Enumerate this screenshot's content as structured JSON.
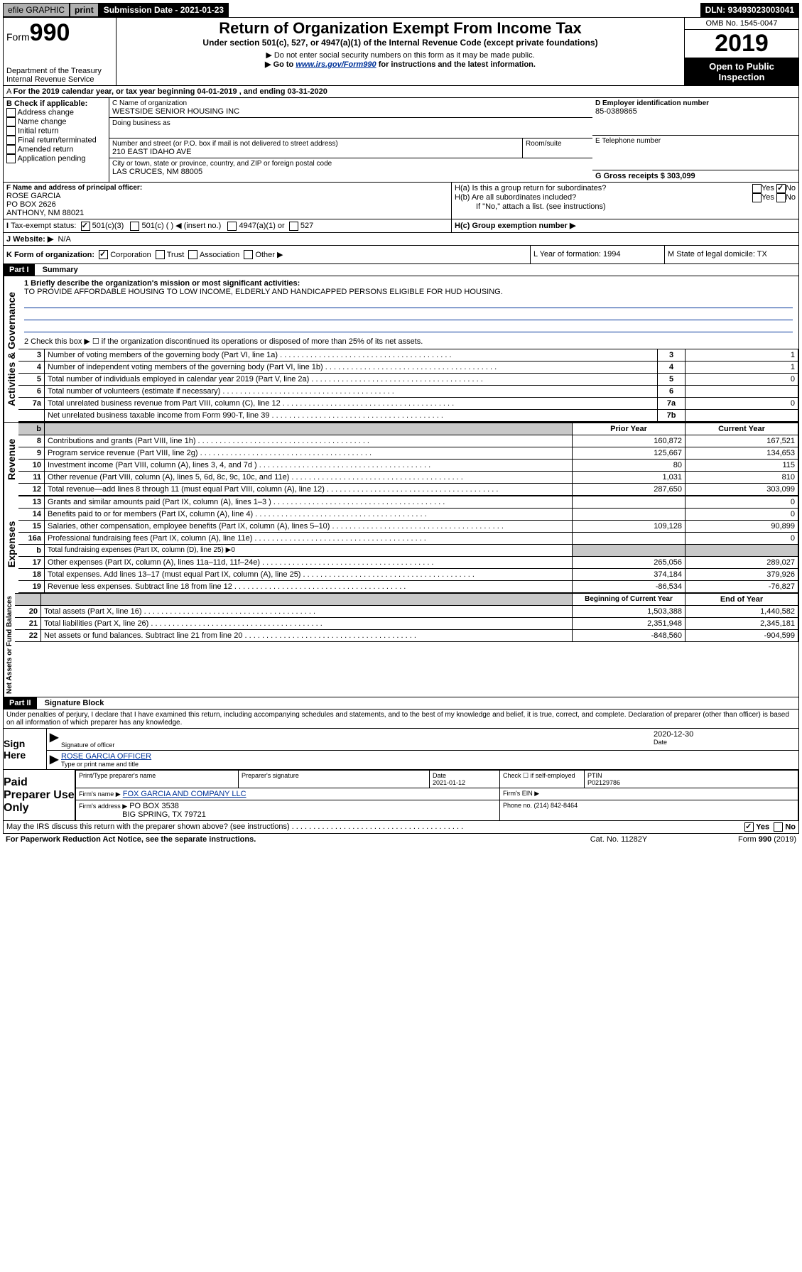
{
  "topbar": {
    "efile": "efile GRAPHIC",
    "print": "print",
    "subdate_label": "Submission Date - 2021-01-23",
    "dln": "DLN: 93493023003041"
  },
  "header": {
    "form_prefix": "Form",
    "form_num": "990",
    "dept": "Department of the Treasury\nInternal Revenue Service",
    "title": "Return of Organization Exempt From Income Tax",
    "subtitle": "Under section 501(c), 527, or 4947(a)(1) of the Internal Revenue Code (except private foundations)",
    "note1": "▶ Do not enter social security numbers on this form as it may be made public.",
    "note2_pre": "▶ Go to ",
    "note2_link": "www.irs.gov/Form990",
    "note2_post": " for instructions and the latest information.",
    "omb": "OMB No. 1545-0047",
    "year": "2019",
    "open": "Open to Public Inspection"
  },
  "line_a": "For the 2019 calendar year, or tax year beginning 04-01-2019   , and ending 03-31-2020",
  "box_b": {
    "title": "B Check if applicable:",
    "items": [
      "Address change",
      "Name change",
      "Initial return",
      "Final return/terminated",
      "Amended return",
      "Application pending"
    ]
  },
  "box_c": {
    "label": "C Name of organization",
    "org": "WESTSIDE SENIOR HOUSING INC",
    "dba": "Doing business as",
    "addr_label": "Number and street (or P.O. box if mail is not delivered to street address)",
    "addr": "210 EAST IDAHO AVE",
    "room": "Room/suite",
    "city_label": "City or town, state or province, country, and ZIP or foreign postal code",
    "city": "LAS CRUCES, NM  88005"
  },
  "box_d": {
    "label": "D Employer identification number",
    "val": "85-0389865"
  },
  "box_e": {
    "label": "E Telephone number"
  },
  "box_g": {
    "label": "G Gross receipts $ 303,099"
  },
  "box_f": {
    "label": "F  Name and address of principal officer:",
    "name": "ROSE GARCIA",
    "addr1": "PO BOX 2626",
    "addr2": "ANTHONY, NM  88021"
  },
  "box_h": {
    "a": "H(a)  Is this a group return for subordinates?",
    "b": "H(b)  Are all subordinates included?",
    "note": "If \"No,\" attach a list. (see instructions)",
    "c": "H(c)  Group exemption number ▶",
    "yes": "Yes",
    "no": "No"
  },
  "tax_exempt": {
    "label": "Tax-exempt status:",
    "c501c3": "501(c)(3)",
    "c501c": "501(c) (  ) ◀ (insert no.)",
    "c4947": "4947(a)(1) or",
    "c527": "527"
  },
  "line_j": {
    "label": "J Website: ▶",
    "val": "N/A"
  },
  "line_k": {
    "label": "K Form of organization:",
    "corp": "Corporation",
    "trust": "Trust",
    "assoc": "Association",
    "other": "Other ▶"
  },
  "line_l": {
    "label": "L Year of formation: 1994"
  },
  "line_m": {
    "label": "M State of legal domicile: TX"
  },
  "part1": {
    "tag": "Part I",
    "title": "Summary"
  },
  "summary": {
    "q1_label": "1  Briefly describe the organization's mission or most significant activities:",
    "q1_text": "TO PROVIDE AFFORDABLE HOUSING TO LOW INCOME, ELDERLY AND HANDICAPPED PERSONS ELIGIBLE FOR HUD HOUSING.",
    "q2": "2   Check this box ▶ ☐  if the organization discontinued its operations or disposed of more than 25% of its net assets.",
    "rows_ag": [
      {
        "n": "3",
        "desc": "Number of voting members of the governing body (Part VI, line 1a)",
        "box": "3",
        "val": "1"
      },
      {
        "n": "4",
        "desc": "Number of independent voting members of the governing body (Part VI, line 1b)",
        "box": "4",
        "val": "1"
      },
      {
        "n": "5",
        "desc": "Total number of individuals employed in calendar year 2019 (Part V, line 2a)",
        "box": "5",
        "val": "0"
      },
      {
        "n": "6",
        "desc": "Total number of volunteers (estimate if necessary)",
        "box": "6",
        "val": ""
      },
      {
        "n": "7a",
        "desc": "Total unrelated business revenue from Part VIII, column (C), line 12",
        "box": "7a",
        "val": "0"
      },
      {
        "n": "",
        "desc": "Net unrelated business taxable income from Form 990-T, line 39",
        "box": "7b",
        "val": ""
      }
    ],
    "col_prior": "Prior Year",
    "col_current": "Current Year",
    "col_begin": "Beginning of Current Year",
    "col_end": "End of Year",
    "revenue": [
      {
        "n": "8",
        "desc": "Contributions and grants (Part VIII, line 1h)",
        "p": "160,872",
        "c": "167,521"
      },
      {
        "n": "9",
        "desc": "Program service revenue (Part VIII, line 2g)",
        "p": "125,667",
        "c": "134,653"
      },
      {
        "n": "10",
        "desc": "Investment income (Part VIII, column (A), lines 3, 4, and 7d )",
        "p": "80",
        "c": "115"
      },
      {
        "n": "11",
        "desc": "Other revenue (Part VIII, column (A), lines 5, 6d, 8c, 9c, 10c, and 11e)",
        "p": "1,031",
        "c": "810"
      },
      {
        "n": "12",
        "desc": "Total revenue—add lines 8 through 11 (must equal Part VIII, column (A), line 12)",
        "p": "287,650",
        "c": "303,099"
      }
    ],
    "expenses": [
      {
        "n": "13",
        "desc": "Grants and similar amounts paid (Part IX, column (A), lines 1–3 )",
        "p": "",
        "c": "0"
      },
      {
        "n": "14",
        "desc": "Benefits paid to or for members (Part IX, column (A), line 4)",
        "p": "",
        "c": "0"
      },
      {
        "n": "15",
        "desc": "Salaries, other compensation, employee benefits (Part IX, column (A), lines 5–10)",
        "p": "109,128",
        "c": "90,899"
      },
      {
        "n": "16a",
        "desc": "Professional fundraising fees (Part IX, column (A), line 11e)",
        "p": "",
        "c": "0"
      },
      {
        "n": "b",
        "desc": "Total fundraising expenses (Part IX, column (D), line 25) ▶0",
        "p": null,
        "c": null
      },
      {
        "n": "17",
        "desc": "Other expenses (Part IX, column (A), lines 11a–11d, 11f–24e)",
        "p": "265,056",
        "c": "289,027"
      },
      {
        "n": "18",
        "desc": "Total expenses. Add lines 13–17 (must equal Part IX, column (A), line 25)",
        "p": "374,184",
        "c": "379,926"
      },
      {
        "n": "19",
        "desc": "Revenue less expenses. Subtract line 18 from line 12",
        "p": "-86,534",
        "c": "-76,827"
      }
    ],
    "net": [
      {
        "n": "20",
        "desc": "Total assets (Part X, line 16)",
        "p": "1,503,388",
        "c": "1,440,582"
      },
      {
        "n": "21",
        "desc": "Total liabilities (Part X, line 26)",
        "p": "2,351,948",
        "c": "2,345,181"
      },
      {
        "n": "22",
        "desc": "Net assets or fund balances. Subtract line 21 from line 20",
        "p": "-848,560",
        "c": "-904,599"
      }
    ],
    "vert_ag": "Activities & Governance",
    "vert_rev": "Revenue",
    "vert_exp": "Expenses",
    "vert_net": "Net Assets or Fund Balances"
  },
  "part2": {
    "tag": "Part II",
    "title": "Signature Block"
  },
  "penalty": "Under penalties of perjury, I declare that I have examined this return, including accompanying schedules and statements, and to the best of my knowledge and belief, it is true, correct, and complete. Declaration of preparer (other than officer) is based on all information of which preparer has any knowledge.",
  "sign": {
    "here": "Sign Here",
    "sig_label": "Signature of officer",
    "date": "2020-12-30",
    "date_label": "Date",
    "name": "ROSE GARCIA OFFICER",
    "name_label": "Type or print name and title"
  },
  "paid": {
    "title": "Paid Preparer Use Only",
    "h1": "Print/Type preparer's name",
    "h2": "Preparer's signature",
    "h3": "Date",
    "h3v": "2021-01-12",
    "h4": "Check ☐ if self-employed",
    "h5": "PTIN",
    "h5v": "P02129786",
    "firm_label": "Firm's name    ▶",
    "firm": "FOX GARCIA AND COMPANY LLC",
    "ein_label": "Firm's EIN ▶",
    "addr_label": "Firm's address ▶",
    "addr": "PO BOX 3538",
    "addr2": "BIG SPRING, TX  79721",
    "phone_label": "Phone no. (214) 842-8464"
  },
  "footer": {
    "discuss": "May the IRS discuss this return with the preparer shown above? (see instructions)",
    "yes": "Yes",
    "no": "No",
    "paperwork": "For Paperwork Reduction Act Notice, see the separate instructions.",
    "cat": "Cat. No. 11282Y",
    "form": "Form 990 (2019)"
  }
}
